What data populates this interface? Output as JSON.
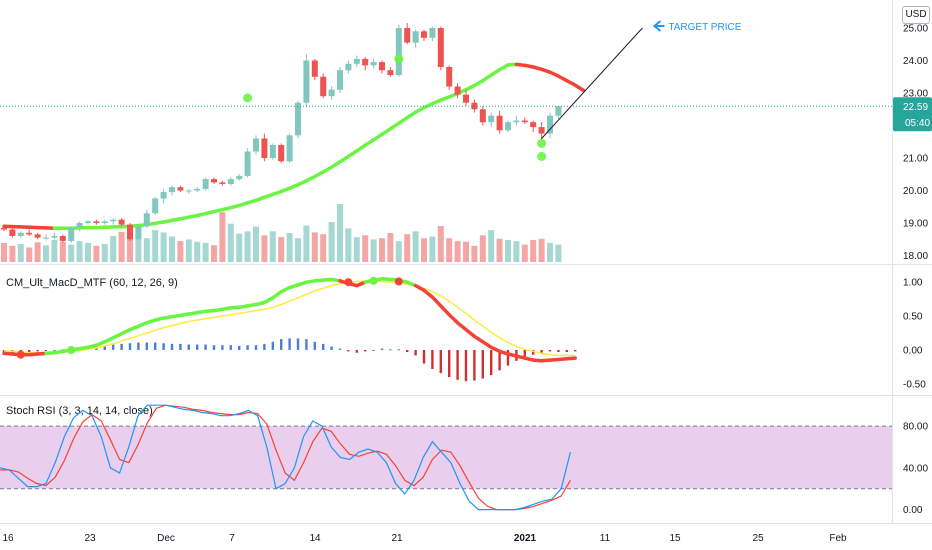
{
  "symbol_currency": "USD",
  "colors": {
    "up": "#7fc7bf",
    "down": "#ef5350",
    "volume_up": "#a6d8d3",
    "volume_down": "#f4a6a4",
    "ma_up": "#69f542",
    "ma_down": "#f44336",
    "macd_signal": "#ffeb3b",
    "macd_hist_pos": "#4a7fd6",
    "macd_hist_neg": "#d32f2f",
    "stoch_k": "#2196f3",
    "stoch_d": "#f44336",
    "stoch_band": "#e1bee7",
    "price_label_bg": "#26a69a",
    "annotation": "#2196f3"
  },
  "price_pane": {
    "last_price": "22.59",
    "countdown": "05:40",
    "annotation": "TARGET PRICE",
    "y_ticks": [
      "25.00",
      "24.00",
      "23.00",
      "22.00",
      "21.00",
      "20.00",
      "19.00",
      "18.00"
    ]
  },
  "macd_pane": {
    "title": "CM_Ult_MacD_MTF (60, 12, 26, 9)",
    "y_ticks": [
      "1.00",
      "0.50",
      "0.00",
      "-0.50"
    ]
  },
  "stoch_pane": {
    "title": "Stoch RSI (3, 3, 14, 14, close)",
    "y_ticks": [
      "80.00",
      "40.00",
      "0.00"
    ]
  },
  "x_axis": {
    "labels": [
      "16",
      "23",
      "Dec",
      "7",
      "14",
      "21",
      "2021",
      "11",
      "15",
      "25",
      "Feb"
    ]
  },
  "chart_data": [
    {
      "type": "candlestick",
      "candles": [
        [
          18.85,
          18.9,
          18.75,
          18.8
        ],
        [
          18.8,
          18.85,
          18.55,
          18.6
        ],
        [
          18.6,
          18.75,
          18.55,
          18.7
        ],
        [
          18.7,
          18.8,
          18.6,
          18.65
        ],
        [
          18.65,
          18.7,
          18.5,
          18.55
        ],
        [
          18.55,
          18.65,
          18.45,
          18.55
        ],
        [
          18.55,
          18.7,
          18.5,
          18.6
        ],
        [
          18.6,
          18.65,
          18.4,
          18.45
        ],
        [
          18.45,
          18.9,
          18.4,
          18.85
        ],
        [
          18.85,
          19.05,
          18.75,
          19.0
        ],
        [
          19.0,
          19.1,
          18.95,
          19.05
        ],
        [
          19.05,
          19.1,
          18.95,
          19.0
        ],
        [
          19.0,
          19.1,
          18.95,
          19.05
        ],
        [
          19.05,
          19.15,
          18.95,
          19.1
        ],
        [
          19.1,
          19.15,
          18.9,
          18.95
        ],
        [
          18.95,
          19.0,
          18.45,
          18.5
        ],
        [
          18.5,
          18.95,
          18.45,
          18.9
        ],
        [
          18.9,
          19.4,
          18.85,
          19.3
        ],
        [
          19.3,
          19.8,
          19.25,
          19.75
        ],
        [
          19.75,
          20.05,
          19.6,
          19.95
        ],
        [
          19.95,
          20.15,
          19.85,
          20.1
        ],
        [
          20.1,
          20.15,
          19.95,
          20.0
        ],
        [
          20.0,
          20.05,
          19.9,
          20.0
        ],
        [
          20.0,
          20.1,
          19.95,
          20.05
        ],
        [
          20.05,
          20.4,
          20.0,
          20.35
        ],
        [
          20.35,
          20.4,
          20.2,
          20.25
        ],
        [
          20.25,
          20.3,
          20.15,
          20.2
        ],
        [
          20.2,
          20.4,
          20.15,
          20.35
        ],
        [
          20.35,
          20.5,
          20.3,
          20.45
        ],
        [
          20.45,
          21.3,
          20.4,
          21.2
        ],
        [
          21.2,
          21.7,
          21.1,
          21.6
        ],
        [
          21.6,
          21.75,
          20.9,
          21.0
        ],
        [
          21.0,
          21.45,
          20.95,
          21.4
        ],
        [
          21.4,
          21.45,
          20.85,
          20.9
        ],
        [
          20.9,
          21.75,
          20.85,
          21.7
        ],
        [
          21.7,
          22.75,
          21.6,
          22.7
        ],
        [
          22.7,
          24.2,
          22.6,
          24.0
        ],
        [
          24.0,
          24.05,
          23.4,
          23.5
        ],
        [
          23.5,
          23.6,
          22.85,
          22.9
        ],
        [
          22.9,
          23.2,
          22.8,
          23.1
        ],
        [
          23.1,
          23.8,
          23.0,
          23.7
        ],
        [
          23.7,
          24.0,
          23.6,
          23.9
        ],
        [
          23.9,
          24.15,
          23.8,
          24.05
        ],
        [
          24.05,
          24.1,
          23.7,
          23.85
        ],
        [
          23.85,
          24.05,
          23.75,
          23.95
        ],
        [
          23.95,
          24.0,
          23.6,
          23.7
        ],
        [
          23.7,
          23.8,
          23.5,
          23.55
        ],
        [
          23.55,
          25.1,
          23.5,
          25.0
        ],
        [
          25.0,
          25.15,
          24.5,
          24.55
        ],
        [
          24.55,
          24.95,
          24.4,
          24.9
        ],
        [
          24.9,
          24.95,
          24.6,
          24.7
        ],
        [
          24.7,
          25.05,
          24.6,
          25.0
        ],
        [
          25.0,
          25.05,
          23.7,
          23.8
        ],
        [
          23.8,
          23.85,
          23.1,
          23.2
        ],
        [
          23.2,
          23.3,
          22.85,
          22.95
        ],
        [
          22.95,
          23.1,
          22.6,
          22.7
        ],
        [
          22.7,
          22.8,
          22.4,
          22.5
        ],
        [
          22.5,
          22.6,
          22.0,
          22.1
        ],
        [
          22.1,
          22.4,
          21.95,
          22.3
        ],
        [
          22.3,
          22.45,
          21.75,
          21.85
        ],
        [
          21.85,
          22.15,
          21.8,
          22.1
        ],
        [
          22.1,
          22.3,
          22.0,
          22.15
        ],
        [
          22.15,
          22.25,
          22.05,
          22.1
        ],
        [
          22.1,
          22.15,
          21.8,
          21.95
        ],
        [
          21.95,
          22.1,
          21.55,
          21.75
        ],
        [
          21.75,
          22.4,
          21.6,
          22.3
        ],
        [
          22.3,
          22.6,
          22.2,
          22.59
        ]
      ],
      "volume": [
        0.33,
        0.28,
        0.31,
        0.25,
        0.34,
        0.29,
        0.38,
        0.35,
        0.3,
        0.36,
        0.33,
        0.28,
        0.31,
        0.45,
        0.52,
        0.6,
        0.48,
        0.41,
        0.55,
        0.51,
        0.44,
        0.36,
        0.39,
        0.35,
        0.33,
        0.29,
        0.86,
        0.66,
        0.49,
        0.53,
        0.61,
        0.46,
        0.53,
        0.43,
        0.5,
        0.41,
        0.63,
        0.51,
        0.48,
        0.69,
        1.0,
        0.58,
        0.43,
        0.46,
        0.39,
        0.41,
        0.5,
        0.36,
        0.48,
        0.53,
        0.41,
        0.44,
        0.62,
        0.41,
        0.36,
        0.35,
        0.28,
        0.46,
        0.55,
        0.4,
        0.38,
        0.36,
        0.3,
        0.38,
        0.4,
        0.33,
        0.3
      ],
      "ma": [
        18.9,
        18.89,
        18.88,
        18.87,
        18.86,
        18.85,
        18.84,
        18.84,
        18.84,
        18.85,
        18.86,
        18.86,
        18.87,
        18.88,
        18.89,
        18.9,
        18.92,
        18.95,
        18.99,
        19.03,
        19.08,
        19.13,
        19.18,
        19.23,
        19.29,
        19.35,
        19.41,
        19.47,
        19.54,
        19.62,
        19.7,
        19.79,
        19.88,
        19.97,
        20.07,
        20.18,
        20.3,
        20.43,
        20.57,
        20.72,
        20.88,
        21.05,
        21.22,
        21.39,
        21.56,
        21.73,
        21.9,
        22.07,
        22.24,
        22.41,
        22.55,
        22.67,
        22.78,
        22.88,
        22.98,
        23.1,
        23.23,
        23.38,
        23.55,
        23.72,
        23.86,
        23.88,
        23.85,
        23.8,
        23.73,
        23.64,
        23.52,
        23.38,
        23.24,
        23.08
      ],
      "dots_below": [
        {
          "index": 29,
          "price": 22.85
        },
        {
          "index": 47,
          "price": 24.05
        },
        {
          "index": 64,
          "price": 21.45
        },
        {
          "index": 64,
          "price": 21.05
        }
      ],
      "target_line": [
        {
          "index": 64,
          "price": 21.6
        },
        {
          "index": 76,
          "price": 25.0
        }
      ],
      "ylim": [
        17.8,
        25.4
      ]
    },
    {
      "type": "line",
      "name": "CM_Ult_MacD_MTF",
      "macd": [
        -0.05,
        -0.06,
        -0.07,
        -0.07,
        -0.06,
        -0.05,
        -0.04,
        -0.02,
        0.0,
        0.02,
        0.04,
        0.07,
        0.12,
        0.18,
        0.24,
        0.3,
        0.35,
        0.4,
        0.44,
        0.47,
        0.49,
        0.51,
        0.53,
        0.55,
        0.57,
        0.58,
        0.6,
        0.62,
        0.63,
        0.65,
        0.67,
        0.7,
        0.77,
        0.86,
        0.92,
        0.96,
        1.0,
        1.02,
        1.03,
        1.04,
        1.02,
        0.98,
        0.95,
        1.0,
        1.03,
        1.05,
        1.04,
        1.03,
        1.0,
        0.95,
        0.88,
        0.78,
        0.65,
        0.52,
        0.4,
        0.3,
        0.2,
        0.12,
        0.04,
        -0.02,
        -0.06,
        -0.09,
        -0.12,
        -0.15,
        -0.16,
        -0.15,
        -0.14,
        -0.13,
        -0.12
      ],
      "signal": [
        -0.01,
        -0.02,
        -0.03,
        -0.04,
        -0.04,
        -0.04,
        -0.04,
        -0.03,
        -0.02,
        -0.01,
        0.01,
        0.03,
        0.06,
        0.09,
        0.13,
        0.17,
        0.21,
        0.25,
        0.29,
        0.33,
        0.36,
        0.39,
        0.42,
        0.44,
        0.46,
        0.48,
        0.5,
        0.52,
        0.54,
        0.56,
        0.58,
        0.6,
        0.63,
        0.67,
        0.72,
        0.77,
        0.82,
        0.87,
        0.91,
        0.95,
        0.98,
        1.0,
        1.01,
        1.02,
        1.02,
        1.01,
        1.0,
        0.99,
        0.97,
        0.94,
        0.91,
        0.86,
        0.8,
        0.72,
        0.63,
        0.54,
        0.44,
        0.35,
        0.26,
        0.18,
        0.11,
        0.05,
        0.01,
        -0.02,
        -0.05,
        -0.07,
        -0.08,
        -0.08,
        -0.08
      ],
      "histogram": [
        -0.03,
        -0.04,
        -0.04,
        -0.03,
        -0.02,
        -0.01,
        0.0,
        0.01,
        0.02,
        0.03,
        0.03,
        0.04,
        0.06,
        0.08,
        0.09,
        0.1,
        0.11,
        0.11,
        0.11,
        0.1,
        0.09,
        0.09,
        0.08,
        0.08,
        0.08,
        0.07,
        0.07,
        0.07,
        0.06,
        0.07,
        0.07,
        0.09,
        0.12,
        0.16,
        0.17,
        0.17,
        0.16,
        0.12,
        0.09,
        0.05,
        0.02,
        -0.02,
        -0.04,
        -0.02,
        0.0,
        0.02,
        0.01,
        0.01,
        -0.03,
        -0.08,
        -0.2,
        -0.28,
        -0.34,
        -0.4,
        -0.44,
        -0.46,
        -0.45,
        -0.42,
        -0.37,
        -0.3,
        -0.23,
        -0.16,
        -0.11,
        -0.07,
        -0.04,
        -0.02,
        -0.03,
        -0.03,
        -0.02
      ],
      "cross_dots": [
        {
          "index": 2,
          "value": -0.07,
          "kind": "down"
        },
        {
          "index": 8,
          "value": 0.0,
          "kind": "up"
        },
        {
          "index": 41,
          "value": 1.0,
          "kind": "down"
        },
        {
          "index": 44,
          "value": 1.02,
          "kind": "up"
        },
        {
          "index": 47,
          "value": 1.01,
          "kind": "down"
        }
      ],
      "ylim": [
        -0.62,
        1.15
      ]
    },
    {
      "type": "line",
      "name": "Stoch RSI",
      "k": [
        40,
        38,
        30,
        22,
        22,
        25,
        45,
        70,
        88,
        95,
        90,
        70,
        40,
        35,
        60,
        90,
        100,
        100,
        100,
        98,
        96,
        95,
        93,
        92,
        90,
        90,
        92,
        95,
        90,
        60,
        20,
        25,
        40,
        70,
        85,
        80,
        60,
        50,
        48,
        55,
        58,
        55,
        45,
        25,
        15,
        28,
        50,
        65,
        55,
        45,
        25,
        8,
        0,
        0,
        0,
        0,
        0,
        2,
        5,
        8,
        10,
        20,
        55
      ],
      "d": [
        38,
        38,
        36,
        30,
        25,
        23,
        31,
        47,
        68,
        84,
        91,
        85,
        67,
        48,
        45,
        62,
        83,
        97,
        100,
        99,
        98,
        96,
        95,
        93,
        92,
        91,
        91,
        93,
        92,
        82,
        57,
        35,
        28,
        45,
        65,
        78,
        75,
        63,
        53,
        51,
        54,
        56,
        53,
        42,
        28,
        23,
        31,
        48,
        57,
        55,
        42,
        26,
        11,
        3,
        0,
        0,
        0,
        1,
        3,
        6,
        9,
        13,
        28
      ],
      "bands": [
        80,
        20
      ],
      "ylim": [
        -10,
        105
      ]
    }
  ]
}
